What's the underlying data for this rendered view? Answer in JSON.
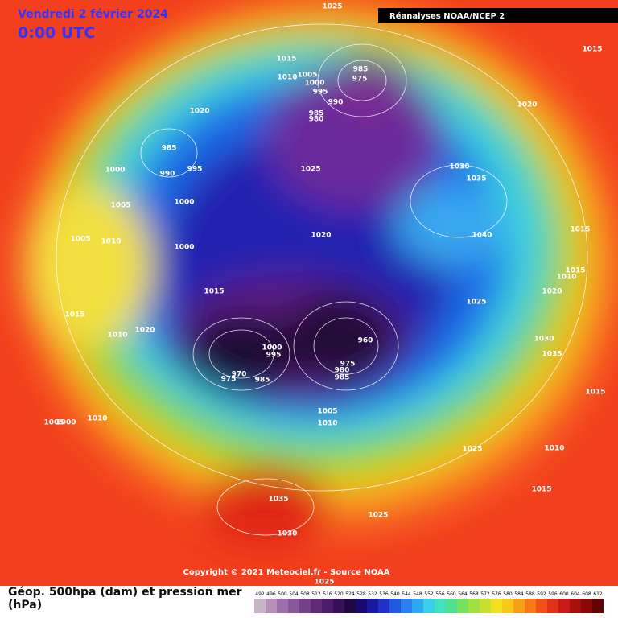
{
  "header": {
    "date": "Vendredi 2 février 2024",
    "time": "0:00 UTC",
    "source_banner": "Réanalyses NOAA/NCEP 2"
  },
  "copyright": "Copyright © 2021 Meteociel.fr - Source NOAA",
  "legend": {
    "title": "Géop. 500hpa (dam) et pression mer (hPa)",
    "ticks": [
      492,
      496,
      500,
      504,
      508,
      512,
      516,
      520,
      524,
      528,
      532,
      536,
      540,
      544,
      548,
      552,
      556,
      560,
      564,
      568,
      572,
      576,
      580,
      584,
      588,
      592,
      596,
      600,
      604,
      608,
      612
    ]
  },
  "isobar_labels": [
    1025,
    1015,
    1010,
    1005,
    1000,
    995,
    990,
    985,
    975,
    985,
    980,
    1020,
    985,
    990,
    995,
    1000,
    1005,
    1000,
    1000,
    1005,
    1010,
    1025,
    1020,
    1030,
    1035,
    1040,
    1015,
    1020,
    1015,
    1015,
    1010,
    1020,
    1025,
    1015,
    1015,
    1010,
    1020,
    1030,
    1035,
    1015,
    1000,
    995,
    975,
    970,
    985,
    960,
    975,
    980,
    985,
    1005,
    1010,
    1005,
    1000,
    1010,
    1025,
    1010,
    1015,
    1035,
    1030,
    1025,
    1025
  ]
}
